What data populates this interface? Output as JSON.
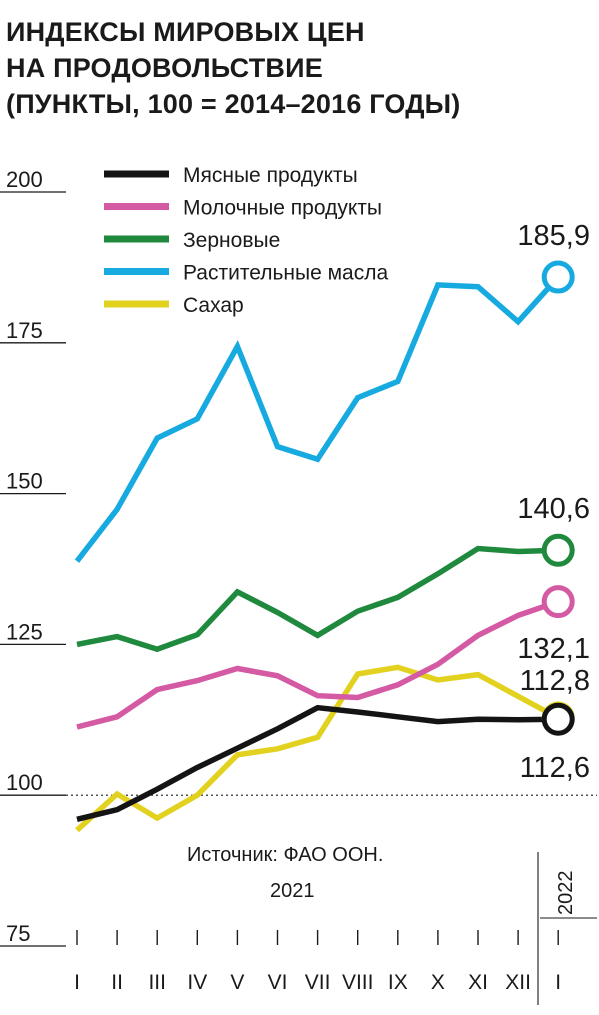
{
  "title_lines": [
    "ИНДЕКСЫ МИРОВЫХ ЦЕН",
    "НА ПРОДОВОЛЬСТВИЕ",
    "(ПУНКТЫ, 100 = 2014–2016 ГОДЫ)"
  ],
  "source": "Источник: ФАО ООН.",
  "year_main": "2021",
  "year_next": "2022",
  "chart_data": {
    "type": "line",
    "title": "ИНДЕКСЫ МИРОВЫХ ЦЕН НА ПРОДОВОЛЬСТВИЕ (ПУНКТЫ, 100 = 2014–2016 ГОДЫ)",
    "categories": [
      "I",
      "II",
      "III",
      "IV",
      "V",
      "VI",
      "VII",
      "VIII",
      "IX",
      "X",
      "XI",
      "XII",
      "I"
    ],
    "y_ticks": [
      "200",
      "175",
      "150",
      "125",
      "100",
      "75"
    ],
    "ylim": [
      75,
      200
    ],
    "reference_line": 100,
    "grid": false,
    "legend_position": "top-left",
    "series": [
      {
        "name": "Мясные продукты",
        "color": "#141414",
        "values": [
          96.0,
          97.6,
          101.0,
          104.6,
          107.8,
          111.0,
          114.5,
          113.8,
          113.0,
          112.2,
          112.6,
          112.5,
          112.6
        ],
        "end_label": "112,6"
      },
      {
        "name": "Молочные продукты",
        "color": "#d45aa4",
        "values": [
          111.3,
          113.0,
          117.5,
          119.0,
          121.0,
          119.8,
          116.5,
          116.2,
          118.3,
          121.7,
          126.5,
          129.8,
          132.1
        ],
        "end_label": "132,1"
      },
      {
        "name": "Зерновые",
        "color": "#1f8a3e",
        "values": [
          125.0,
          126.3,
          124.2,
          126.6,
          133.7,
          130.3,
          126.5,
          130.5,
          132.8,
          136.7,
          140.9,
          140.4,
          140.6
        ],
        "end_label": "140,6"
      },
      {
        "name": "Растительные масла",
        "color": "#16aae0",
        "values": [
          138.8,
          147.4,
          159.2,
          162.4,
          174.4,
          157.8,
          155.7,
          165.9,
          168.6,
          184.6,
          184.3,
          178.5,
          185.9
        ],
        "end_label": "185,9"
      },
      {
        "name": "Сахар",
        "color": "#e2d21f",
        "values": [
          94.2,
          100.2,
          96.2,
          100.0,
          106.7,
          107.7,
          109.6,
          120.1,
          121.2,
          119.1,
          120.0,
          116.4,
          112.8
        ],
        "end_label": "112,8"
      }
    ]
  }
}
